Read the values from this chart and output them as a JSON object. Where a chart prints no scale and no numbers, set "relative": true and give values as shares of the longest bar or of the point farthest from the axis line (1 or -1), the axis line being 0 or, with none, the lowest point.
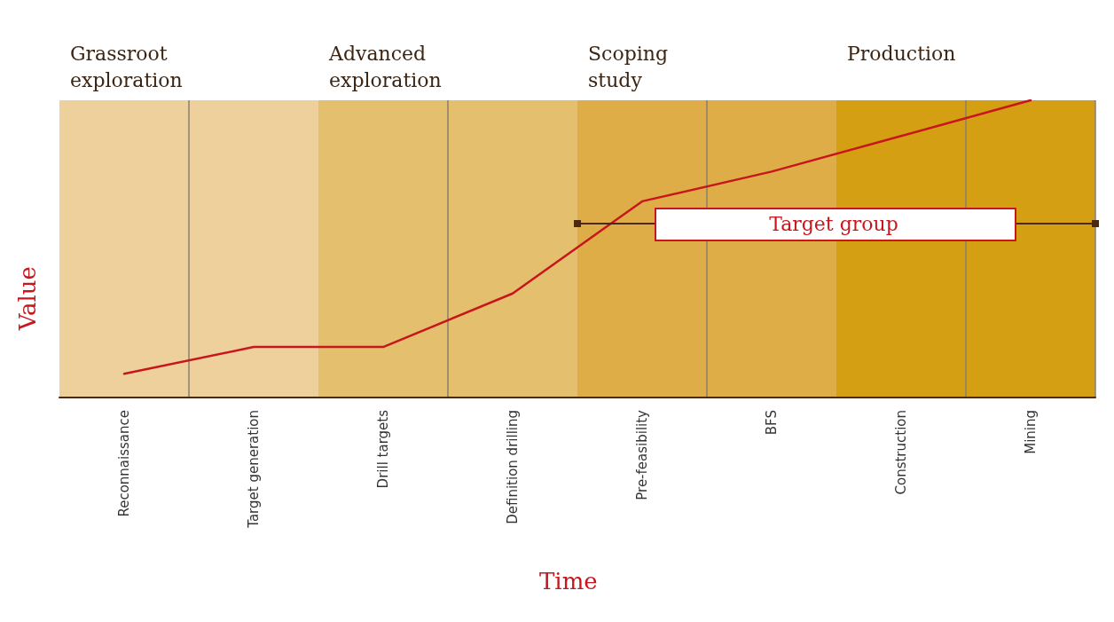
{
  "chart_data": {
    "type": "line",
    "relative": true,
    "xlabel": "Time",
    "ylabel": "Value",
    "categories": [
      "Reconnaissance",
      "Target generation",
      "Drill targets",
      "Definition drilling",
      "Pre-feasibility",
      "BFS",
      "Construction",
      "Mining"
    ],
    "series": [
      {
        "color": "#c8161d",
        "values": [
          0.08,
          0.17,
          0.17,
          0.35,
          0.66,
          0.76,
          0.88,
          1
        ]
      }
    ],
    "bands": [
      {
        "axis": "x",
        "from": "Reconnaissance",
        "to": "Target generation",
        "label": "Grassroot exploration",
        "color": "#eed09d"
      },
      {
        "axis": "x",
        "from": "Drill targets",
        "to": "Definition drilling",
        "label": "Advanced exploration",
        "color": "#e3bf6e"
      },
      {
        "axis": "x",
        "from": "Pre-feasibility",
        "to": "BFS",
        "label": "Scoping study",
        "color": "#dead48"
      },
      {
        "axis": "x",
        "from": "Construction",
        "to": "Mining",
        "label": "Production",
        "color": "#d49f12"
      }
    ],
    "annotations": [
      "Target group"
    ],
    "grid": "x",
    "marker": "none",
    "line_style": "solid"
  }
}
